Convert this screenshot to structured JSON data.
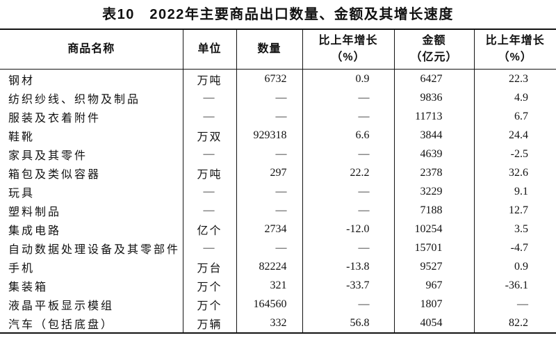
{
  "title": "表10　2022年主要商品出口数量、金额及其增长速度",
  "table": {
    "columns": [
      {
        "id": "product-name",
        "header_lines": [
          "商品名称"
        ]
      },
      {
        "id": "unit",
        "header_lines": [
          "单位"
        ]
      },
      {
        "id": "quantity",
        "header_lines": [
          "数量"
        ]
      },
      {
        "id": "quantity-growth",
        "header_lines": [
          "比上年增长",
          "（%）"
        ]
      },
      {
        "id": "amount",
        "header_lines": [
          "金额",
          "（亿元）"
        ]
      },
      {
        "id": "amount-growth",
        "header_lines": [
          "比上年增长",
          "（%）"
        ]
      }
    ],
    "missing_value_dash": "—",
    "rows": [
      {
        "cells": [
          "钢材",
          "万吨",
          "6732",
          "0.9",
          "6427",
          "22.3"
        ]
      },
      {
        "cells": [
          "纺织纱线、织物及制品",
          "—",
          "—",
          "—",
          "9836",
          "4.9"
        ]
      },
      {
        "cells": [
          "服装及衣着附件",
          "—",
          "—",
          "—",
          "11713",
          "6.7"
        ]
      },
      {
        "cells": [
          "鞋靴",
          "万双",
          "929318",
          "6.6",
          "3844",
          "24.4"
        ]
      },
      {
        "cells": [
          "家具及其零件",
          "—",
          "—",
          "—",
          "4639",
          "-2.5"
        ]
      },
      {
        "cells": [
          "箱包及类似容器",
          "万吨",
          "297",
          "22.2",
          "2378",
          "32.6"
        ]
      },
      {
        "cells": [
          "玩具",
          "—",
          "—",
          "—",
          "3229",
          "9.1"
        ]
      },
      {
        "cells": [
          "塑料制品",
          "—",
          "—",
          "—",
          "7188",
          "12.7"
        ]
      },
      {
        "cells": [
          "集成电路",
          "亿个",
          "2734",
          "-12.0",
          "10254",
          "3.5"
        ]
      },
      {
        "cells": [
          "自动数据处理设备及其零部件",
          "—",
          "—",
          "—",
          "15701",
          "-4.7"
        ]
      },
      {
        "cells": [
          "手机",
          "万台",
          "82224",
          "-13.8",
          "9527",
          "0.9"
        ]
      },
      {
        "cells": [
          "集装箱",
          "万个",
          "321",
          "-33.7",
          "967",
          "-36.1"
        ]
      },
      {
        "cells": [
          "液晶平板显示模组",
          "万个",
          "164560",
          "—",
          "1807",
          "—"
        ]
      },
      {
        "cells": [
          "汽车（包括底盘）",
          "万辆",
          "332",
          "56.8",
          "4054",
          "82.2"
        ]
      }
    ]
  },
  "colors": {
    "text": "#111111",
    "border": "#111111",
    "background": "#ffffff"
  }
}
